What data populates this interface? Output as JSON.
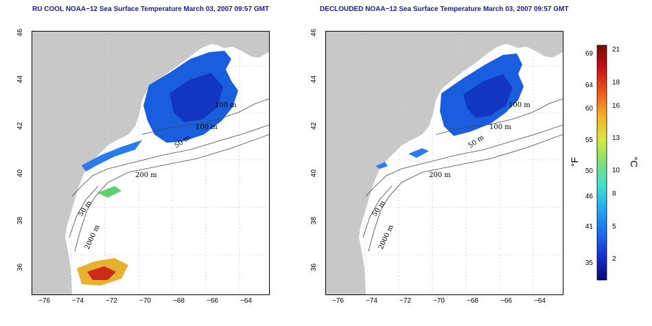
{
  "panels": [
    {
      "id": "left",
      "title": "RU COOL NOAA−12 Sea Surface Temperature March 03, 2007 09:57 GMT",
      "variant": "raw"
    },
    {
      "id": "right",
      "title": "DECLOUDED NOAA−12 Sea Surface Temperature March 03, 2007 09:57 GMT",
      "variant": "declouded"
    }
  ],
  "axes": {
    "x_ticks": [
      "−76",
      "−74",
      "−72",
      "−70",
      "−68",
      "−66",
      "−64"
    ],
    "y_ticks": [
      "36",
      "38",
      "40",
      "42",
      "44",
      "46"
    ]
  },
  "contour_labels": [
    "100 m",
    "100 m",
    "50 m",
    "200 m",
    "50 m",
    "2000 m"
  ],
  "colorbar": {
    "fahrenheit_label": "°F",
    "celsius_label": "°C",
    "fahrenheit_ticks": [
      "69",
      "64",
      "60",
      "55",
      "50",
      "46",
      "41",
      "35"
    ],
    "celsius_ticks": [
      "21",
      "18",
      "16",
      "13",
      "10",
      "8",
      "5",
      "2"
    ],
    "colors": [
      "#08087a",
      "#1530d0",
      "#1e6ef0",
      "#23a8f0",
      "#40e0d0",
      "#7ee07a",
      "#d8e83a",
      "#f5b02a",
      "#ee5a1e",
      "#c81414",
      "#7a0808"
    ]
  }
}
